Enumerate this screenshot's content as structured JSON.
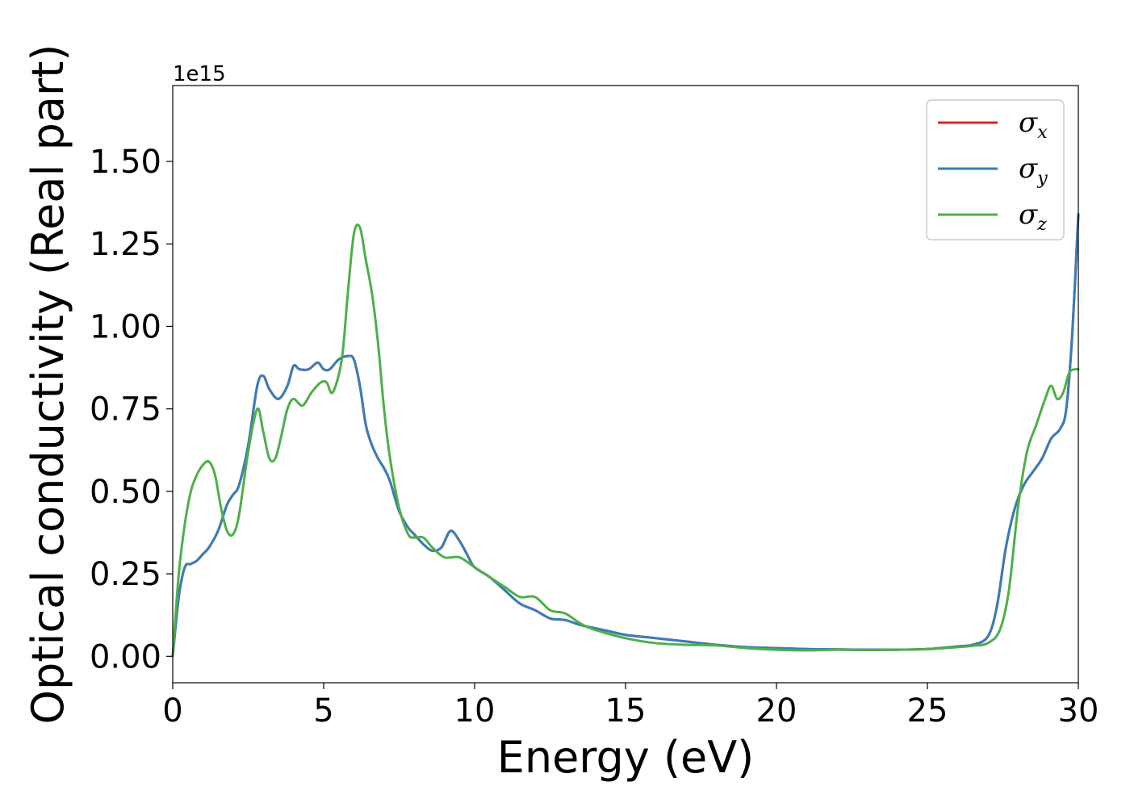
{
  "chart_data": {
    "type": "line",
    "xlabel": "Energy (eV)",
    "ylabel": "Optical conductivity (Real part)",
    "y_offset_label": "1e15",
    "xlim": [
      0,
      30
    ],
    "ylim": [
      -0.08,
      1.73
    ],
    "x_ticks": [
      0,
      5,
      10,
      15,
      20,
      25,
      30
    ],
    "x_tick_labels": [
      "0",
      "5",
      "10",
      "15",
      "20",
      "25",
      "30"
    ],
    "y_ticks": [
      0.0,
      0.25,
      0.5,
      0.75,
      1.0,
      1.25,
      1.5
    ],
    "y_tick_labels": [
      "0.00",
      "0.25",
      "0.50",
      "0.75",
      "1.00",
      "1.25",
      "1.50"
    ],
    "grid": false,
    "legend_position": "top-right",
    "series": [
      {
        "name": "σx",
        "symbol": "σ",
        "subscript": "x",
        "color": "#d62728",
        "x": [
          0,
          0.2,
          0.4,
          0.6,
          0.8,
          1.0,
          1.2,
          1.5,
          1.8,
          2.0,
          2.2,
          2.5,
          2.8,
          3.0,
          3.2,
          3.5,
          3.8,
          4.0,
          4.2,
          4.5,
          4.8,
          5.0,
          5.2,
          5.5,
          5.8,
          6.0,
          6.2,
          6.4,
          6.6,
          6.8,
          7.0,
          7.2,
          7.5,
          7.8,
          8.0,
          8.3,
          8.6,
          8.9,
          9.2,
          9.5,
          9.8,
          10.0,
          10.5,
          11.0,
          11.5,
          12.0,
          12.5,
          13.0,
          13.5,
          14.0,
          14.5,
          15.0,
          16.0,
          17.0,
          18.0,
          19.0,
          20.0,
          21.0,
          22.0,
          23.0,
          24.0,
          25.0,
          26.0,
          26.5,
          27.0,
          27.3,
          27.6,
          27.9,
          28.2,
          28.5,
          28.8,
          29.1,
          29.4,
          29.6,
          29.8,
          30.0
        ],
        "y": [
          0.0,
          0.18,
          0.27,
          0.28,
          0.29,
          0.31,
          0.33,
          0.38,
          0.46,
          0.49,
          0.52,
          0.64,
          0.82,
          0.85,
          0.81,
          0.78,
          0.82,
          0.88,
          0.87,
          0.87,
          0.89,
          0.87,
          0.87,
          0.9,
          0.91,
          0.9,
          0.82,
          0.7,
          0.64,
          0.6,
          0.57,
          0.53,
          0.44,
          0.39,
          0.37,
          0.34,
          0.32,
          0.33,
          0.38,
          0.35,
          0.3,
          0.27,
          0.24,
          0.2,
          0.16,
          0.14,
          0.115,
          0.11,
          0.095,
          0.085,
          0.075,
          0.065,
          0.055,
          0.045,
          0.035,
          0.028,
          0.025,
          0.022,
          0.021,
          0.02,
          0.02,
          0.022,
          0.03,
          0.035,
          0.06,
          0.15,
          0.33,
          0.45,
          0.52,
          0.56,
          0.6,
          0.66,
          0.69,
          0.75,
          0.98,
          1.34
        ]
      },
      {
        "name": "σy",
        "symbol": "σ",
        "subscript": "y",
        "color": "#377eb8",
        "x": [
          0,
          0.2,
          0.4,
          0.6,
          0.8,
          1.0,
          1.2,
          1.5,
          1.8,
          2.0,
          2.2,
          2.5,
          2.8,
          3.0,
          3.2,
          3.5,
          3.8,
          4.0,
          4.2,
          4.5,
          4.8,
          5.0,
          5.2,
          5.5,
          5.8,
          6.0,
          6.2,
          6.4,
          6.6,
          6.8,
          7.0,
          7.2,
          7.5,
          7.8,
          8.0,
          8.3,
          8.6,
          8.9,
          9.2,
          9.5,
          9.8,
          10.0,
          10.5,
          11.0,
          11.5,
          12.0,
          12.5,
          13.0,
          13.5,
          14.0,
          14.5,
          15.0,
          16.0,
          17.0,
          18.0,
          19.0,
          20.0,
          21.0,
          22.0,
          23.0,
          24.0,
          25.0,
          26.0,
          26.5,
          27.0,
          27.3,
          27.6,
          27.9,
          28.2,
          28.5,
          28.8,
          29.1,
          29.4,
          29.6,
          29.8,
          30.0
        ],
        "y": [
          0.0,
          0.18,
          0.27,
          0.28,
          0.29,
          0.31,
          0.33,
          0.38,
          0.46,
          0.49,
          0.52,
          0.64,
          0.82,
          0.85,
          0.81,
          0.78,
          0.82,
          0.88,
          0.87,
          0.87,
          0.89,
          0.87,
          0.87,
          0.9,
          0.91,
          0.9,
          0.82,
          0.7,
          0.64,
          0.6,
          0.57,
          0.53,
          0.44,
          0.39,
          0.37,
          0.34,
          0.32,
          0.33,
          0.38,
          0.35,
          0.3,
          0.27,
          0.24,
          0.2,
          0.16,
          0.14,
          0.115,
          0.11,
          0.095,
          0.085,
          0.075,
          0.065,
          0.055,
          0.045,
          0.035,
          0.028,
          0.025,
          0.022,
          0.021,
          0.02,
          0.02,
          0.022,
          0.03,
          0.035,
          0.06,
          0.15,
          0.33,
          0.45,
          0.52,
          0.56,
          0.6,
          0.66,
          0.69,
          0.75,
          0.98,
          1.34
        ]
      },
      {
        "name": "σz",
        "symbol": "σ",
        "subscript": "z",
        "color": "#4daf4a",
        "x": [
          0,
          0.2,
          0.4,
          0.6,
          0.8,
          1.0,
          1.2,
          1.4,
          1.6,
          1.8,
          2.0,
          2.2,
          2.5,
          2.8,
          3.0,
          3.2,
          3.4,
          3.6,
          3.8,
          4.0,
          4.3,
          4.6,
          4.9,
          5.1,
          5.3,
          5.6,
          5.8,
          6.0,
          6.2,
          6.4,
          6.6,
          6.8,
          7.0,
          7.2,
          7.5,
          7.8,
          8.0,
          8.3,
          8.6,
          9.0,
          9.5,
          10.0,
          10.5,
          11.0,
          11.5,
          12.0,
          12.5,
          13.0,
          13.5,
          14.0,
          15.0,
          16.0,
          17.0,
          18.0,
          19.0,
          20.0,
          21.0,
          22.0,
          23.0,
          24.0,
          25.0,
          26.0,
          26.5,
          27.0,
          27.4,
          27.7,
          28.0,
          28.3,
          28.6,
          28.9,
          29.1,
          29.3,
          29.5,
          29.7,
          29.9,
          30.0
        ],
        "y": [
          0.0,
          0.25,
          0.4,
          0.5,
          0.55,
          0.58,
          0.59,
          0.55,
          0.45,
          0.38,
          0.37,
          0.43,
          0.62,
          0.75,
          0.68,
          0.6,
          0.6,
          0.67,
          0.75,
          0.78,
          0.76,
          0.8,
          0.83,
          0.83,
          0.8,
          0.9,
          1.1,
          1.28,
          1.3,
          1.2,
          1.1,
          0.95,
          0.75,
          0.6,
          0.45,
          0.37,
          0.36,
          0.36,
          0.33,
          0.3,
          0.3,
          0.27,
          0.24,
          0.21,
          0.18,
          0.18,
          0.14,
          0.13,
          0.1,
          0.08,
          0.055,
          0.04,
          0.035,
          0.033,
          0.025,
          0.02,
          0.018,
          0.02,
          0.019,
          0.02,
          0.022,
          0.028,
          0.032,
          0.04,
          0.08,
          0.2,
          0.45,
          0.62,
          0.7,
          0.78,
          0.82,
          0.78,
          0.8,
          0.86,
          0.87,
          0.87
        ]
      }
    ]
  }
}
